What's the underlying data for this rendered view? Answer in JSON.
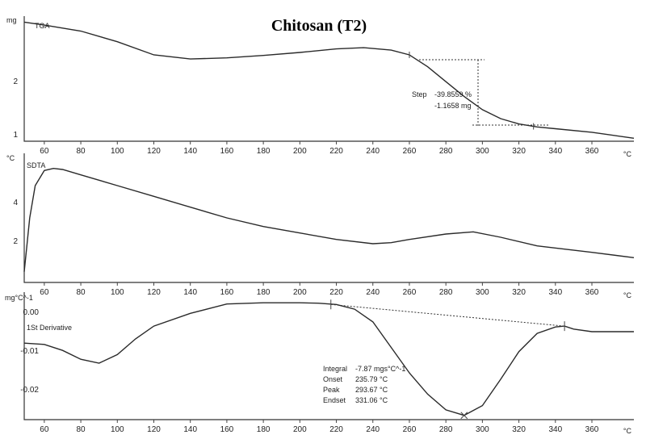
{
  "chart_data": {
    "type": "line",
    "title": "Chitosan (T2)",
    "x_unit": "°C",
    "x_ticks": [
      60,
      80,
      100,
      120,
      140,
      160,
      180,
      200,
      220,
      240,
      260,
      280,
      300,
      320,
      340,
      360
    ],
    "panels": [
      {
        "name": "TGA",
        "y_unit": "mg",
        "y_ticks": [
          "2",
          "1"
        ],
        "ylim": [
          0.95,
          3.05
        ],
        "xlim": [
          49,
          383
        ],
        "series": [
          {
            "x": [
              49,
              60,
              80,
              100,
              120,
              140,
              160,
              180,
              200,
              220,
              235,
              250,
              260,
              270,
              280,
              290,
              300,
              310,
              320,
              330,
              340,
              360,
              383
            ],
            "y": [
              2.95,
              2.9,
              2.8,
              2.62,
              2.4,
              2.33,
              2.35,
              2.39,
              2.44,
              2.5,
              2.52,
              2.48,
              2.4,
              2.2,
              1.95,
              1.7,
              1.48,
              1.33,
              1.24,
              1.19,
              1.16,
              1.1,
              1.0
            ]
          }
        ],
        "annotations": {
          "step_label": "Step",
          "step_percent": "-39.8559 %",
          "step_mass": "-1.1658 mg",
          "marker_x": [
            260,
            328
          ]
        }
      },
      {
        "name": "SDTA",
        "y_unit": "°C",
        "y_ticks": [
          "4",
          "2"
        ],
        "ylim": [
          0.5,
          6.5
        ],
        "xlim": [
          49,
          383
        ],
        "series": [
          {
            "x": [
              49,
              52,
              55,
              60,
              65,
              70,
              80,
              100,
              120,
              140,
              160,
              180,
              200,
              220,
              240,
              250,
              260,
              280,
              295,
              310,
              330,
              360,
              383
            ],
            "y": [
              1.0,
              3.5,
              5.0,
              5.7,
              5.8,
              5.75,
              5.5,
              5.0,
              4.5,
              4.0,
              3.5,
              3.1,
              2.8,
              2.5,
              2.3,
              2.35,
              2.5,
              2.75,
              2.85,
              2.6,
              2.2,
              1.9,
              1.65
            ]
          }
        ]
      },
      {
        "name": "1St Derivative",
        "y_unit": "mg°C^-1",
        "y_ticks": [
          "0.00",
          "-0.01",
          "-0.02"
        ],
        "ylim": [
          -0.0255,
          0.0045
        ],
        "xlim": [
          49,
          383
        ],
        "series": [
          {
            "x": [
              49,
              60,
              70,
              80,
              90,
              100,
              110,
              120,
              140,
              160,
              180,
              200,
              210,
              220,
              230,
              240,
              250,
              260,
              270,
              280,
              290,
              300,
              310,
              320,
              330,
              340,
              345,
              350,
              360,
              383
            ],
            "y": [
              -0.0075,
              -0.0078,
              -0.0092,
              -0.0113,
              -0.0122,
              -0.0102,
              -0.0065,
              -0.0035,
              -0.0005,
              0.0017,
              0.002,
              0.002,
              0.0019,
              0.0016,
              0.0005,
              -0.0025,
              -0.0085,
              -0.0145,
              -0.0195,
              -0.0232,
              -0.0245,
              -0.0222,
              -0.016,
              -0.0095,
              -0.0052,
              -0.0037,
              -0.0035,
              -0.0042,
              -0.0048,
              -0.0048
            ]
          }
        ],
        "baseline": {
          "x": [
            217,
            345
          ],
          "y": [
            0.0016,
            -0.0035
          ]
        },
        "annotations": {
          "integral_label": "Integral",
          "integral_value": "-7.87 mgs°C^-1",
          "onset_label": "Onset",
          "onset_value": "235.79 °C",
          "peak_label": "Peak",
          "peak_value": "293.67 °C",
          "endset_label": "Endset",
          "endset_value": "331.06 °C"
        }
      }
    ]
  }
}
